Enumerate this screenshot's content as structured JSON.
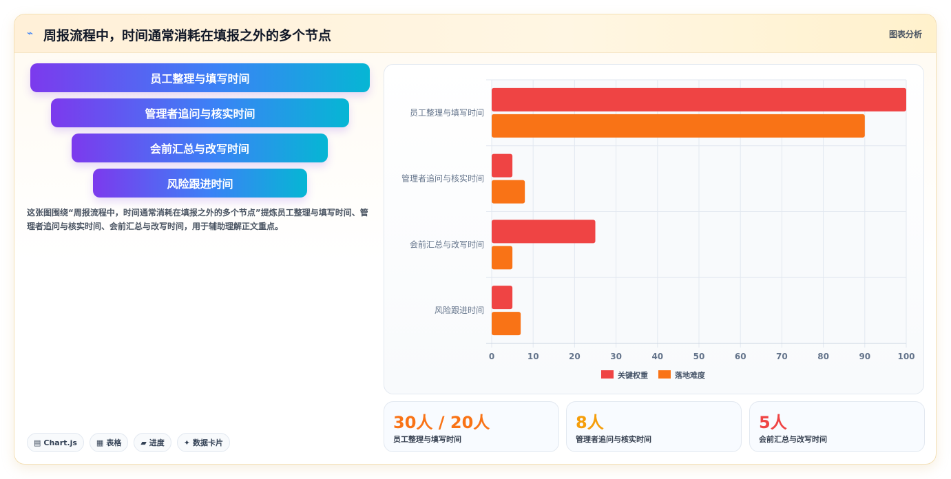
{
  "header": {
    "logo_icon": "trend-line-icon",
    "logo_glyph": "⌁",
    "title": "周报流程中，时间通常消耗在填报之外的多个节点",
    "tag": "图表分析"
  },
  "funnel": {
    "steps": [
      "员工整理与填写时间",
      "管理者追问与核实时间",
      "会前汇总与改写时间",
      "风险跟进时间"
    ]
  },
  "description": "这张图围绕“周报流程中，时间通常消耗在填报之外的多个节点”提炼员工整理与填写时间、管理者追问与核实时间、会前汇总与改写时间，用于辅助理解正文重点。",
  "chips": [
    {
      "icon": "chart-icon",
      "glyph": "▤",
      "label": "Chart.js"
    },
    {
      "icon": "table-icon",
      "glyph": "▦",
      "label": "表格"
    },
    {
      "icon": "progress-icon",
      "glyph": "▰",
      "label": "进度"
    },
    {
      "icon": "card-icon",
      "glyph": "✦",
      "label": "数据卡片"
    }
  ],
  "chart_data": {
    "type": "bar",
    "orientation": "horizontal",
    "categories": [
      "员工整理与填写时间",
      "管理者追问与核实时间",
      "会前汇总与改写时间",
      "风险跟进时间"
    ],
    "series": [
      {
        "name": "关键权重",
        "values": [
          100,
          5,
          25,
          5
        ],
        "color": "#ef4444"
      },
      {
        "name": "落地难度",
        "values": [
          90,
          8,
          5,
          7
        ],
        "color": "#f97316"
      }
    ],
    "xlim": [
      0,
      100
    ],
    "ticks": [
      "0",
      "10",
      "20",
      "30",
      "40",
      "50",
      "60",
      "70",
      "80",
      "90",
      "100"
    ],
    "grid": true,
    "legend_position": "bottom"
  },
  "stats": [
    {
      "value": "30人 / 20人",
      "label": "员工整理与填写时间",
      "color": "#f97316"
    },
    {
      "value": "8人",
      "label": "管理者追问与核实时间",
      "color": "#f59e0b"
    },
    {
      "value": "5人",
      "label": "会前汇总与改写时间",
      "color": "#ef4444"
    }
  ]
}
